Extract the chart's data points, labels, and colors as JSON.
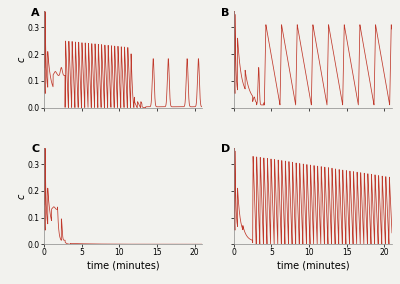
{
  "line_color": "#c0392b",
  "bg_color": "#f2f2ee",
  "panel_labels": [
    "A",
    "B",
    "C",
    "D"
  ],
  "xlim": [
    0,
    21
  ],
  "ylim": [
    0,
    0.36
  ],
  "yticks": [
    0.0,
    0.1,
    0.2,
    0.3
  ],
  "xticks": [
    0,
    5,
    10,
    15,
    20
  ],
  "ylabel": "c",
  "xlabel": "time (minutes)",
  "figsize": [
    4.0,
    2.84
  ],
  "dpi": 100
}
